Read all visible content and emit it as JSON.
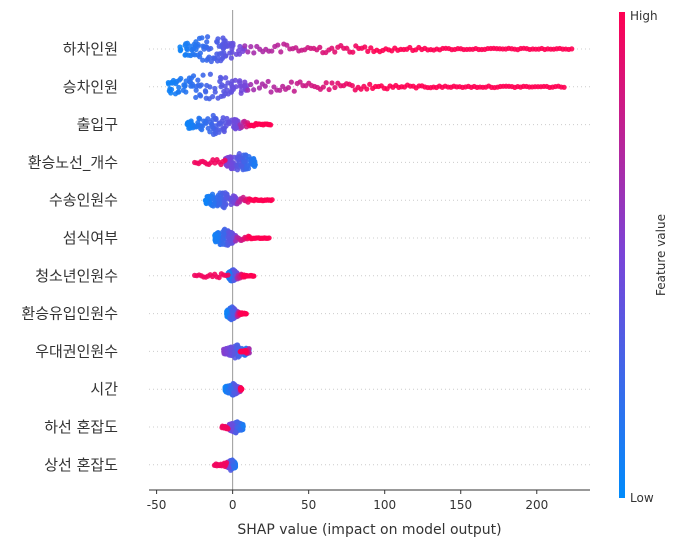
{
  "chart_data": {
    "type": "scatter",
    "subtype": "shap-beeswarm",
    "xlabel": "SHAP value (impact on model output)",
    "xlim": [
      -55,
      235
    ],
    "xticks": [
      -50,
      0,
      50,
      100,
      150,
      200
    ],
    "colorbar": {
      "title": "Feature value",
      "high_label": "High",
      "low_label": "Low",
      "high_color": "#ff0052",
      "low_color": "#008bfb"
    },
    "features": [
      {
        "name": "하차인원",
        "low_min": -35,
        "low_max": 8,
        "high_max": 223,
        "low_side": "negative",
        "spread": 14
      },
      {
        "name": "승차인원",
        "low_min": -43,
        "low_max": 10,
        "high_max": 218,
        "low_side": "negative",
        "spread": 14
      },
      {
        "name": "출입구",
        "low_min": -30,
        "low_max": 5,
        "high_max": 25,
        "low_side": "negative",
        "spread": 10
      },
      {
        "name": "환승노선_개수",
        "low_min": -5,
        "low_max": 15,
        "high_min": -25,
        "low_side": "positive",
        "spread": 10
      },
      {
        "name": "수송인원수",
        "low_min": -18,
        "low_max": 3,
        "high_max": 26,
        "low_side": "negative",
        "spread": 9
      },
      {
        "name": "섬식여부",
        "low_min": -12,
        "low_max": 2,
        "high_max": 24,
        "low_side": "negative",
        "spread": 9
      },
      {
        "name": "청소년인원수",
        "low_min": -3,
        "low_max": 3,
        "high_max": 14,
        "high_min": -25,
        "low_side": "negative",
        "spread": 7
      },
      {
        "name": "환승유입인원수",
        "low_min": -4,
        "low_max": 3,
        "high_max": 9,
        "low_side": "negative",
        "spread": 7
      },
      {
        "name": "우대권인원수",
        "low_min": -6,
        "low_max": 11,
        "high_max": 5,
        "low_side": "positive",
        "spread": 7
      },
      {
        "name": "시간",
        "low_min": -5,
        "low_max": 5,
        "high_max": 6,
        "low_side": "negative",
        "spread": 6
      },
      {
        "name": "하선 혼잡도",
        "low_min": -3,
        "low_max": 7,
        "high_min": -7,
        "low_side": "positive",
        "spread": 6
      },
      {
        "name": "상선 혼잡도",
        "low_min": -4,
        "low_max": 2,
        "high_min": -12,
        "low_side": "positive",
        "spread": 6
      }
    ]
  }
}
